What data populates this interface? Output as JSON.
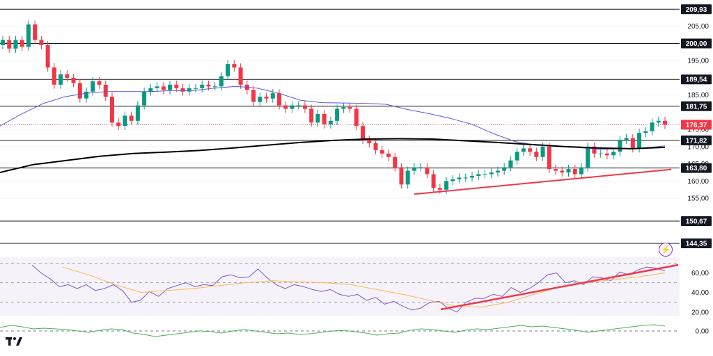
{
  "chart_data": {
    "type": "candlestick",
    "price_panel": {
      "ylim": [
        152,
        211
      ],
      "y_ticks": [
        "205,00",
        "195,00",
        "185,00",
        "175,00",
        "170,00",
        "165,00",
        "160,00",
        "155,00"
      ],
      "current_price": {
        "value": 176.37,
        "label": "176,37"
      },
      "horizontal_levels": [
        {
          "value": 209.93,
          "label": "209,93"
        },
        {
          "value": 200.0,
          "label": "200,00"
        },
        {
          "value": 189.54,
          "label": "189,54"
        },
        {
          "value": 181.75,
          "label": "181,75"
        },
        {
          "value": 171.82,
          "label": "171,82"
        },
        {
          "value": 163.8,
          "label": "163,80"
        },
        {
          "value": 150.67,
          "label": "150,67"
        },
        {
          "value": 144.35,
          "label": "144,35"
        }
      ],
      "closes": [
        201,
        198.5,
        201,
        199,
        205.5,
        201,
        199.5,
        193,
        188,
        191,
        190,
        188.5,
        184,
        186,
        189,
        188,
        184.5,
        177,
        176,
        179,
        177.5,
        182,
        186,
        187,
        187.5,
        186.5,
        188,
        187,
        186,
        187,
        187,
        188,
        187.5,
        187.5,
        190.5,
        194,
        193,
        188,
        186.5,
        183,
        184.5,
        184,
        185.5,
        182,
        181,
        182,
        182,
        181,
        177,
        179.5,
        176.5,
        177.5,
        181,
        181.5,
        181,
        176,
        172,
        171,
        169,
        168,
        167,
        164,
        159,
        163,
        164,
        164,
        162,
        158,
        157.5,
        160,
        160.5,
        161,
        161,
        161.5,
        162,
        162,
        162.5,
        163,
        164,
        166,
        168.5,
        169.5,
        168.5,
        167,
        170,
        163.5,
        163,
        162.5,
        163.5,
        162,
        164,
        170,
        168,
        168,
        167.5,
        168.5,
        172,
        172.5,
        169.5,
        174,
        174.5,
        177,
        177.5,
        176.37
      ],
      "ma_short": {
        "color": "#5b56d6",
        "values": [
          176.0,
          179.5,
          182.5,
          184.5,
          185.5,
          186.0,
          186.0,
          186.0,
          186.3,
          186.3,
          187.0,
          187.5,
          187.0,
          185.5,
          183.5,
          182.8,
          182.7,
          182.6,
          182.3,
          180.8,
          179.6,
          178.2,
          176.5,
          173.8,
          171.5,
          170.4,
          170.0,
          169.7,
          169.2,
          169.4,
          169.6,
          170.2
        ]
      },
      "ma_long": {
        "color": "#000000",
        "values": [
          162.5,
          164.8,
          166.0,
          167.2,
          168.0,
          168.4,
          168.9,
          169.6,
          170.4,
          171.2,
          171.8,
          172.2,
          172.3,
          172.2,
          171.7,
          171.2,
          170.6,
          170.0,
          169.6,
          169.4,
          169.8
        ]
      },
      "trendline": {
        "color": "#f23645",
        "from": [
          64,
          156.2
        ],
        "to": [
          104,
          165
        ]
      }
    },
    "rsi_panel": {
      "ylim": [
        12,
        76
      ],
      "y_ticks": [
        "60,00",
        "40,00",
        "20,00"
      ],
      "band": [
        30,
        70
      ],
      "rsi": [
        68,
        60,
        54,
        46,
        48,
        44,
        48,
        42,
        44,
        48,
        42,
        30,
        32,
        41,
        36,
        44,
        47,
        50,
        46,
        48,
        47,
        56,
        58,
        55,
        56,
        64,
        55,
        48,
        44,
        48,
        46,
        43,
        41,
        43,
        38,
        36,
        38,
        32,
        35,
        28,
        31,
        26,
        22,
        24,
        30,
        31,
        24,
        20,
        30,
        34,
        34,
        38,
        36,
        45,
        40,
        44,
        50,
        58,
        60,
        50,
        52,
        48,
        56,
        55,
        52,
        61,
        58,
        63,
        66,
        65,
        62
      ],
      "rsi_ma": [
        66,
        58,
        48,
        40,
        42,
        44,
        47,
        50,
        52,
        51,
        50,
        48,
        43,
        38,
        32,
        26,
        25,
        30,
        38,
        46,
        50,
        53,
        56,
        60
      ],
      "rsi_color": "#7e57c2",
      "rsi_ma_color": "#ffb74d",
      "trendline": {
        "color": "#f23645",
        "from": [
          64,
          21
        ],
        "to": [
          96,
          61
        ]
      }
    },
    "indicator_panel": {
      "zero_label": "0,00",
      "values": [
        0.5,
        0.8,
        0.6,
        0.3,
        0.4,
        0.3,
        0.2,
        0.0,
        -0.2,
        0.1,
        0.3,
        0.2,
        -0.3,
        -0.5,
        -0.8,
        -0.6,
        -0.4,
        -0.2,
        0.0,
        -0.1,
        -0.3,
        0.0,
        0.2,
        0.0,
        -0.2,
        -0.4,
        -0.3,
        -0.5,
        -0.4,
        -0.2,
        0.0,
        0.1,
        -0.1,
        -0.3,
        -0.6,
        -0.4,
        -0.3,
        0.1,
        0.3,
        0.2,
        0.0,
        -0.2,
        0.1,
        0.3,
        0.2,
        0.4,
        0.6,
        0.8,
        0.6,
        0.7,
        0.5,
        0.3,
        0.1,
        -0.2,
        0.0,
        0.2,
        0.4,
        0.6,
        0.8,
        0.9,
        0.7
      ],
      "color": "#4caf50"
    },
    "colors": {
      "up": "#089981",
      "down": "#f23645",
      "grid": "#d1d4dc"
    }
  },
  "logo_text": "17",
  "alert_icon": "lightning-icon"
}
